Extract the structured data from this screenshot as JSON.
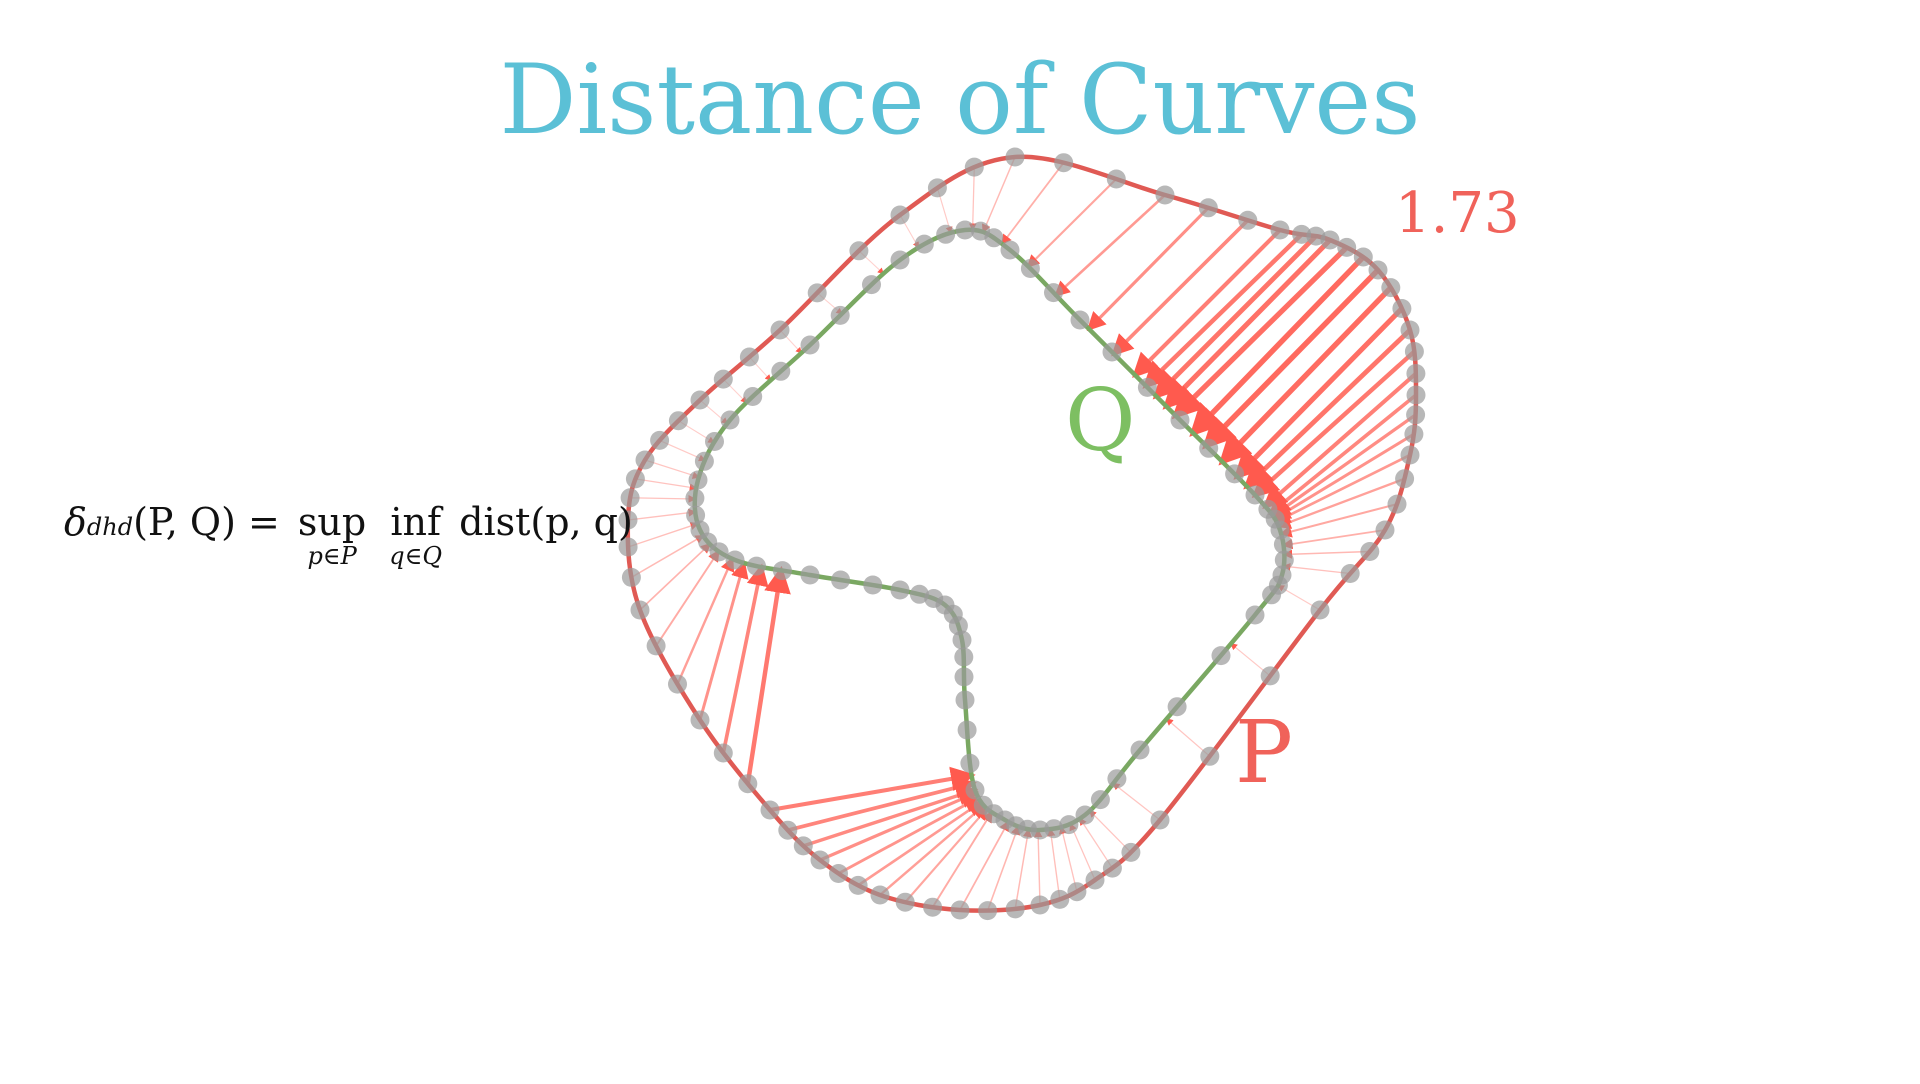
{
  "title": "Distance of Curves",
  "value_label": "1.73",
  "curve_p_label": "P",
  "curve_q_label": "Q",
  "formula": {
    "delta": "δ",
    "delta_sub": "dhd",
    "args": "(P, Q) =",
    "sup": "sup",
    "sup_under": "p∈P",
    "inf": "inf",
    "inf_under": "q∈Q",
    "dist": "dist(p, q)"
  },
  "colors": {
    "title": "#5bc0d6",
    "p_curve": "#e05a54",
    "q_curve": "#7aa862",
    "q_label": "#7dbf62",
    "p_label": "#f0625a",
    "arrow": "#ff5a4e",
    "marker": "#9a9a9a",
    "value": "#f0625a"
  }
}
